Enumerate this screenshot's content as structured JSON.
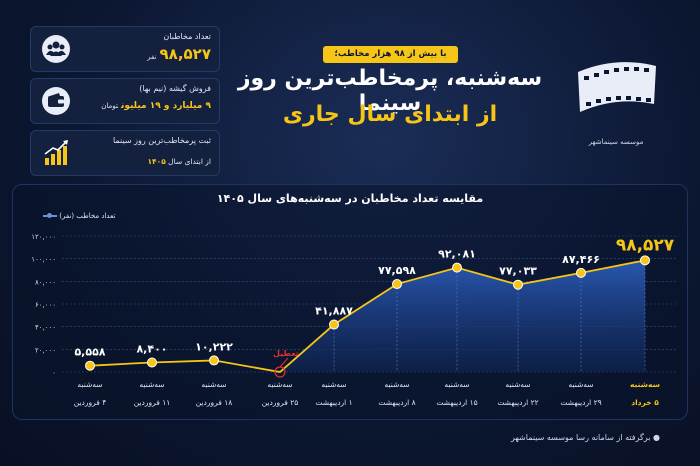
{
  "stats": [
    {
      "label": "تعداد مخاطبان",
      "value": "۹۸,۵۲۷",
      "unit": "نفر",
      "icon": "audience-icon"
    },
    {
      "label": "فروش گیشه (نیم بها)",
      "value": "۹ میلیارد و ۱۹ میلیون",
      "unit": "تومان",
      "icon": "wallet-icon"
    },
    {
      "label": "ثبت پرمخاطب‌ترین روز سینما",
      "label2_prefix": "از ابتدای سال",
      "label2_year": "۱۴۰۵",
      "icon": "growth-chart-icon"
    }
  ],
  "headline": {
    "badge": "با بیش از ۹۸ هزار مخاطب؛",
    "line1": "سه‌شنبه، پرمخاطب‌ترین روز سینما",
    "line2": "از ابتدای سال جاری"
  },
  "logo": {
    "text": "موسسه سینماشهر",
    "icon": "film-strip-logo-icon"
  },
  "footer": "● برگرفته از سامانه رسا موسسه سینماشهر",
  "colors": {
    "accent": "#f5c518",
    "area": "#1e4a9a",
    "background": "#0b1630"
  },
  "chart_data": {
    "type": "area",
    "title": "مقایسه تعداد مخاطبان در سه‌شنبه‌های سال ۱۴۰۵",
    "legend": "تعداد مخاطب (نفر)",
    "legend_position": "top-left",
    "ylim": [
      0,
      120000
    ],
    "yticks": [
      0,
      20000,
      40000,
      60000,
      80000,
      100000,
      120000
    ],
    "ytick_labels": [
      "۰",
      "۲۰,۰۰۰",
      "۴۰,۰۰۰",
      "۶۰,۰۰۰",
      "۸۰,۰۰۰",
      "۱۰۰,۰۰۰",
      "۱۲۰,۰۰۰"
    ],
    "grid": true,
    "categories": [
      {
        "day": "سه‌شنبه",
        "date": "۴ فروردین"
      },
      {
        "day": "سه‌شنبه",
        "date": "۱۱ فروردین"
      },
      {
        "day": "سه‌شنبه",
        "date": "۱۸ فروردین"
      },
      {
        "day": "سه‌شنبه",
        "date": "۲۵ فروردین"
      },
      {
        "day": "سه‌شنبه",
        "date": "۱ اردیبهشت"
      },
      {
        "day": "سه‌شنبه",
        "date": "۸ اردیبهشت"
      },
      {
        "day": "سه‌شنبه",
        "date": "۱۵ اردیبهشت"
      },
      {
        "day": "سه‌شنبه",
        "date": "۲۲ اردیبهشت"
      },
      {
        "day": "سه‌شنبه",
        "date": "۲۹ اردیبهشت"
      },
      {
        "day": "سه‌شنبه",
        "date": "۵ خرداد"
      }
    ],
    "values": [
      5558,
      8400,
      10222,
      0,
      41887,
      77598,
      92081,
      77033,
      87466,
      98527
    ],
    "value_labels": [
      "۵,۵۵۸",
      "۸,۴۰۰",
      "۱۰,۲۲۲",
      "",
      "۴۱,۸۸۷",
      "۷۷,۵۹۸",
      "۹۲,۰۸۱",
      "۷۷,۰۳۳",
      "۸۷,۴۶۶",
      "۹۸,۵۲۷"
    ],
    "annotation": {
      "index": 3,
      "text": "تعطیل"
    },
    "highlight_index": 9
  }
}
